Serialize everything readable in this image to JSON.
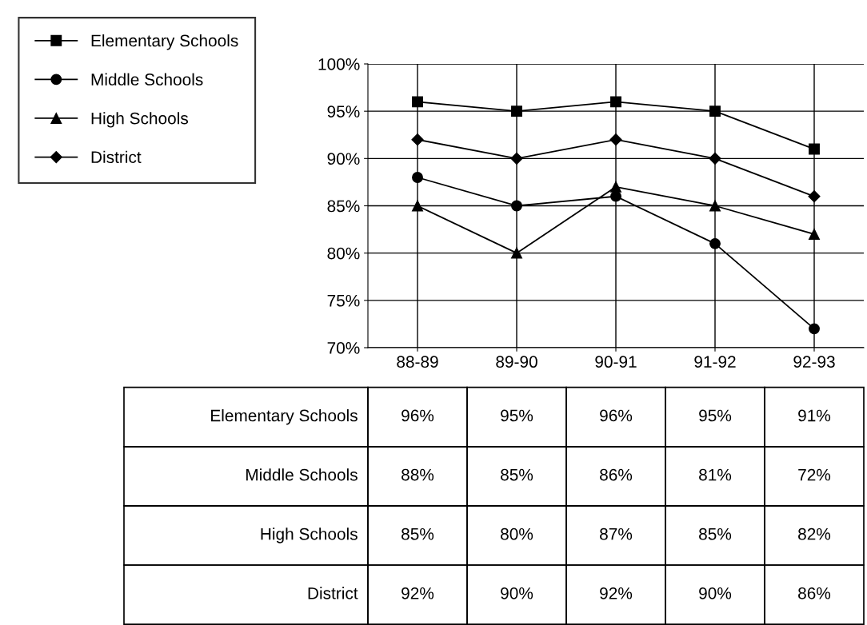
{
  "chart_data": {
    "type": "line",
    "categories": [
      "88-89",
      "89-90",
      "90-91",
      "91-92",
      "92-93"
    ],
    "series": [
      {
        "name": "Elementary Schools",
        "color": "#000000",
        "marker": "square",
        "values": [
          96,
          95,
          96,
          95,
          91
        ],
        "value_labels": [
          "96%",
          "95%",
          "96%",
          "95%",
          "91%"
        ]
      },
      {
        "name": "Middle Schools",
        "color": "#000000",
        "marker": "circle",
        "values": [
          88,
          85,
          86,
          81,
          72
        ],
        "value_labels": [
          "88%",
          "85%",
          "86%",
          "81%",
          "72%"
        ]
      },
      {
        "name": "High Schools",
        "color": "#000000",
        "marker": "triangle",
        "values": [
          85,
          80,
          87,
          85,
          82
        ],
        "value_labels": [
          "85%",
          "80%",
          "87%",
          "85%",
          "82%"
        ]
      },
      {
        "name": "District",
        "color": "#000000",
        "marker": "diamond",
        "values": [
          92,
          90,
          92,
          90,
          86
        ],
        "value_labels": [
          "92%",
          "90%",
          "92%",
          "90%",
          "86%"
        ]
      }
    ],
    "ylim": [
      70,
      100
    ],
    "yticks": [
      {
        "value": 70,
        "label": "70%"
      },
      {
        "value": 75,
        "label": "75%"
      },
      {
        "value": 80,
        "label": "80%"
      },
      {
        "value": 85,
        "label": "85%"
      },
      {
        "value": 90,
        "label": "90%"
      },
      {
        "value": 95,
        "label": "95%"
      },
      {
        "value": 100,
        "label": "100%"
      }
    ],
    "grid": true,
    "legend": "left",
    "line_style": "solid"
  }
}
